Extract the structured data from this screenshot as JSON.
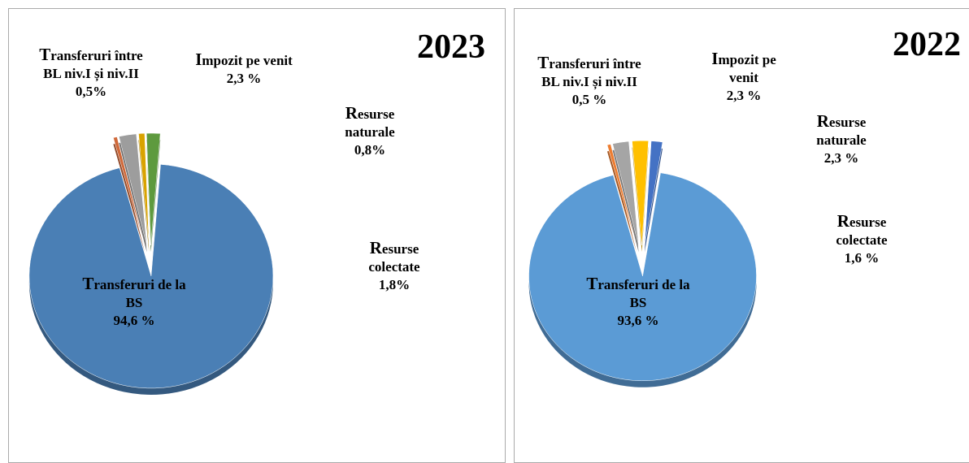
{
  "chart_data": [
    {
      "type": "pie",
      "title": "2023",
      "categories": [
        "Transferuri între BL niv.I și niv.II",
        "Impozit pe venit",
        "Resurse naturale",
        "Resurse colectate",
        "Transferuri de la BS"
      ],
      "values": [
        0.5,
        2.3,
        0.8,
        1.8,
        94.6
      ],
      "value_labels": [
        "0,5%",
        "2,3 %",
        "0,8%",
        "1,8%",
        "94,6 %"
      ],
      "colors": [
        "#d0693a",
        "#9d9d9d",
        "#d9a300",
        "#5e9a3e",
        "#4a7fb5"
      ]
    },
    {
      "type": "pie",
      "title": "2022",
      "categories": [
        "Transferuri între BL niv.I și niv.II",
        "Impozit pe venit",
        "Resurse naturale",
        "Resurse colectate",
        "Transferuri de la BS"
      ],
      "values": [
        0.5,
        2.3,
        2.3,
        1.6,
        93.6
      ],
      "value_labels": [
        "0,5 %",
        "2,3 %",
        "2,3 %",
        "1,6 %",
        "93,6 %"
      ],
      "colors": [
        "#ed7d31",
        "#a5a5a5",
        "#ffc000",
        "#4472c4",
        "#5b9bd5"
      ]
    }
  ]
}
